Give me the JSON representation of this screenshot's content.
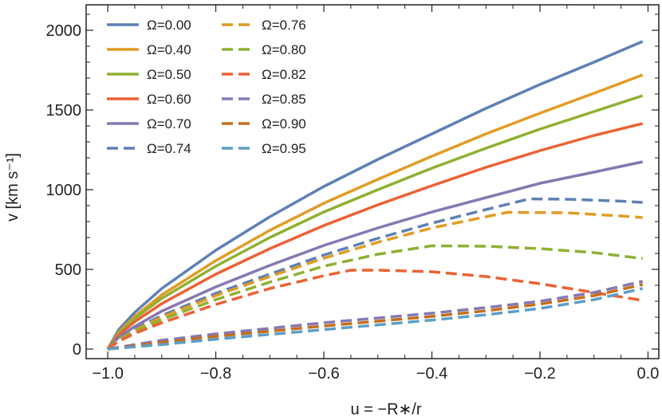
{
  "chart_data": {
    "type": "line",
    "title": "",
    "xlabel": "u = −R∗/r",
    "ylabel": "v [km s⁻¹]",
    "xlim": [
      -1.04,
      0.02
    ],
    "ylim": [
      -60,
      2160
    ],
    "x_ticks": [
      -1.0,
      -0.8,
      -0.6,
      -0.4,
      -0.2,
      0.0
    ],
    "x_tick_labels": [
      "−1.0",
      "−0.8",
      "−0.6",
      "−0.4",
      "−0.2",
      "0.0"
    ],
    "y_ticks": [
      0,
      500,
      1000,
      1500,
      2000
    ],
    "y_tick_labels": [
      "0",
      "500",
      "1000",
      "1500",
      "2000"
    ],
    "grid": false,
    "legend_position": "top-left",
    "series": [
      {
        "name": "Ω=0.00",
        "color": "#5E81B5",
        "dash": "solid",
        "points": [
          [
            -1.0,
            0
          ],
          [
            -0.98,
            120
          ],
          [
            -0.95,
            230
          ],
          [
            -0.9,
            380
          ],
          [
            -0.8,
            620
          ],
          [
            -0.7,
            830
          ],
          [
            -0.6,
            1020
          ],
          [
            -0.5,
            1190
          ],
          [
            -0.4,
            1350
          ],
          [
            -0.3,
            1510
          ],
          [
            -0.2,
            1660
          ],
          [
            -0.1,
            1800
          ],
          [
            -0.01,
            1930
          ]
        ]
      },
      {
        "name": "Ω=0.40",
        "color": "#E19C24",
        "dash": "solid",
        "points": [
          [
            -1.0,
            0
          ],
          [
            -0.98,
            105
          ],
          [
            -0.95,
            205
          ],
          [
            -0.9,
            340
          ],
          [
            -0.8,
            555
          ],
          [
            -0.7,
            745
          ],
          [
            -0.6,
            915
          ],
          [
            -0.5,
            1065
          ],
          [
            -0.4,
            1210
          ],
          [
            -0.3,
            1350
          ],
          [
            -0.2,
            1480
          ],
          [
            -0.1,
            1605
          ],
          [
            -0.01,
            1720
          ]
        ]
      },
      {
        "name": "Ω=0.50",
        "color": "#8FB032",
        "dash": "solid",
        "points": [
          [
            -1.0,
            0
          ],
          [
            -0.98,
            98
          ],
          [
            -0.95,
            192
          ],
          [
            -0.9,
            318
          ],
          [
            -0.8,
            520
          ],
          [
            -0.7,
            700
          ],
          [
            -0.6,
            860
          ],
          [
            -0.5,
            1000
          ],
          [
            -0.4,
            1135
          ],
          [
            -0.3,
            1260
          ],
          [
            -0.2,
            1380
          ],
          [
            -0.1,
            1490
          ],
          [
            -0.01,
            1590
          ]
        ]
      },
      {
        "name": "Ω=0.60",
        "color": "#EB6235",
        "dash": "solid",
        "points": [
          [
            -1.0,
            0
          ],
          [
            -0.98,
            88
          ],
          [
            -0.95,
            172
          ],
          [
            -0.9,
            285
          ],
          [
            -0.8,
            470
          ],
          [
            -0.7,
            630
          ],
          [
            -0.6,
            775
          ],
          [
            -0.5,
            905
          ],
          [
            -0.4,
            1025
          ],
          [
            -0.3,
            1140
          ],
          [
            -0.2,
            1245
          ],
          [
            -0.1,
            1340
          ],
          [
            -0.01,
            1415
          ]
        ]
      },
      {
        "name": "Ω=0.70",
        "color": "#8778B3",
        "dash": "solid",
        "points": [
          [
            -1.0,
            0
          ],
          [
            -0.98,
            72
          ],
          [
            -0.95,
            142
          ],
          [
            -0.9,
            238
          ],
          [
            -0.8,
            390
          ],
          [
            -0.7,
            525
          ],
          [
            -0.6,
            650
          ],
          [
            -0.5,
            760
          ],
          [
            -0.4,
            860
          ],
          [
            -0.3,
            950
          ],
          [
            -0.2,
            1040
          ],
          [
            -0.1,
            1110
          ],
          [
            -0.01,
            1175
          ]
        ]
      },
      {
        "name": "Ω=0.74",
        "color": "#5E81B5",
        "dash": "dashed",
        "points": [
          [
            -1.0,
            0
          ],
          [
            -0.98,
            62
          ],
          [
            -0.95,
            125
          ],
          [
            -0.9,
            210
          ],
          [
            -0.8,
            350
          ],
          [
            -0.7,
            470
          ],
          [
            -0.6,
            590
          ],
          [
            -0.5,
            695
          ],
          [
            -0.4,
            790
          ],
          [
            -0.3,
            875
          ],
          [
            -0.22,
            942
          ],
          [
            -0.15,
            940
          ],
          [
            -0.05,
            928
          ],
          [
            -0.01,
            920
          ]
        ]
      },
      {
        "name": "Ω=0.76",
        "color": "#E19C24",
        "dash": "dashed",
        "points": [
          [
            -1.0,
            0
          ],
          [
            -0.98,
            58
          ],
          [
            -0.95,
            118
          ],
          [
            -0.9,
            200
          ],
          [
            -0.8,
            335
          ],
          [
            -0.7,
            455
          ],
          [
            -0.6,
            570
          ],
          [
            -0.5,
            670
          ],
          [
            -0.4,
            760
          ],
          [
            -0.3,
            830
          ],
          [
            -0.26,
            858
          ],
          [
            -0.15,
            855
          ],
          [
            -0.05,
            835
          ],
          [
            -0.01,
            825
          ]
        ]
      },
      {
        "name": "Ω=0.80",
        "color": "#8FB032",
        "dash": "dashed",
        "points": [
          [
            -1.0,
            0
          ],
          [
            -0.98,
            55
          ],
          [
            -0.95,
            110
          ],
          [
            -0.9,
            185
          ],
          [
            -0.8,
            310
          ],
          [
            -0.7,
            420
          ],
          [
            -0.6,
            520
          ],
          [
            -0.5,
            595
          ],
          [
            -0.4,
            648
          ],
          [
            -0.3,
            645
          ],
          [
            -0.2,
            630
          ],
          [
            -0.1,
            605
          ],
          [
            -0.01,
            568
          ]
        ]
      },
      {
        "name": "Ω=0.82",
        "color": "#EB6235",
        "dash": "dashed",
        "points": [
          [
            -1.0,
            0
          ],
          [
            -0.98,
            48
          ],
          [
            -0.95,
            98
          ],
          [
            -0.9,
            165
          ],
          [
            -0.8,
            280
          ],
          [
            -0.7,
            380
          ],
          [
            -0.6,
            460
          ],
          [
            -0.55,
            495
          ],
          [
            -0.5,
            495
          ],
          [
            -0.4,
            485
          ],
          [
            -0.3,
            455
          ],
          [
            -0.2,
            410
          ],
          [
            -0.1,
            355
          ],
          [
            -0.01,
            305
          ]
        ]
      },
      {
        "name": "Ω=0.85",
        "color": "#8778B3",
        "dash": "dashed",
        "points": [
          [
            -1.0,
            0
          ],
          [
            -0.9,
            55
          ],
          [
            -0.8,
            95
          ],
          [
            -0.7,
            130
          ],
          [
            -0.6,
            165
          ],
          [
            -0.5,
            195
          ],
          [
            -0.4,
            225
          ],
          [
            -0.3,
            260
          ],
          [
            -0.2,
            300
          ],
          [
            -0.1,
            355
          ],
          [
            -0.01,
            425
          ]
        ]
      },
      {
        "name": "Ω=0.90",
        "color": "#C56E1A",
        "dash": "dashed",
        "points": [
          [
            -1.0,
            0
          ],
          [
            -0.9,
            42
          ],
          [
            -0.8,
            80
          ],
          [
            -0.7,
            112
          ],
          [
            -0.6,
            145
          ],
          [
            -0.5,
            175
          ],
          [
            -0.4,
            205
          ],
          [
            -0.3,
            240
          ],
          [
            -0.2,
            282
          ],
          [
            -0.1,
            335
          ],
          [
            -0.01,
            405
          ]
        ]
      },
      {
        "name": "Ω=0.95",
        "color": "#5D9EC7",
        "dash": "dashed",
        "points": [
          [
            -1.0,
            0
          ],
          [
            -0.9,
            28
          ],
          [
            -0.8,
            62
          ],
          [
            -0.7,
            92
          ],
          [
            -0.6,
            122
          ],
          [
            -0.5,
            152
          ],
          [
            -0.4,
            182
          ],
          [
            -0.3,
            215
          ],
          [
            -0.2,
            255
          ],
          [
            -0.1,
            310
          ],
          [
            -0.01,
            380
          ]
        ]
      }
    ]
  }
}
